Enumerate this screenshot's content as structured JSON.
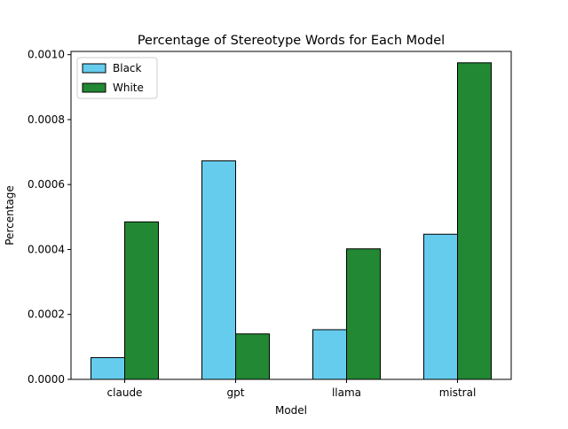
{
  "chart_data": {
    "type": "bar",
    "title": "Percentage of Stereotype Words for Each Model",
    "xlabel": "Model",
    "ylabel": "Percentage",
    "categories": [
      "claude",
      "gpt",
      "llama",
      "mistral"
    ],
    "series": [
      {
        "name": "Black",
        "color": "#66ccee",
        "values": [
          6.7e-05,
          0.000673,
          0.000153,
          0.000447
        ]
      },
      {
        "name": "White",
        "color": "#228833",
        "values": [
          0.000485,
          0.00014,
          0.000402,
          0.000975
        ]
      }
    ],
    "ylim": [
      0,
      0.00101
    ],
    "yticks": [
      0.0,
      0.0002,
      0.0004,
      0.0006,
      0.0008,
      0.001
    ],
    "ytick_labels": [
      "0.0000",
      "0.0002",
      "0.0004",
      "0.0006",
      "0.0008",
      "0.0010"
    ],
    "grid": false,
    "legend_position": "top-left"
  }
}
